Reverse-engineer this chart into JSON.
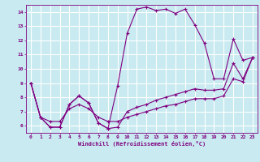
{
  "xlabel": "Windchill (Refroidissement éolien,°C)",
  "bg_color": "#c8eaf0",
  "grid_color": "#ffffff",
  "line_color": "#800080",
  "xlim": [
    -0.5,
    23.5
  ],
  "ylim": [
    5.5,
    14.5
  ],
  "yticks": [
    6,
    7,
    8,
    9,
    10,
    11,
    12,
    13,
    14
  ],
  "xticks": [
    0,
    1,
    2,
    3,
    4,
    5,
    6,
    7,
    8,
    9,
    10,
    11,
    12,
    13,
    14,
    15,
    16,
    17,
    18,
    19,
    20,
    21,
    22,
    23
  ],
  "line1_x": [
    0,
    1,
    2,
    3,
    4,
    5,
    6,
    7,
    8,
    9,
    10,
    11,
    12,
    13,
    14,
    15,
    16,
    17,
    18,
    19,
    20,
    21,
    22,
    23
  ],
  "line1_y": [
    9.0,
    6.6,
    5.9,
    5.9,
    7.5,
    8.1,
    7.6,
    6.2,
    5.8,
    5.9,
    7.0,
    7.3,
    7.5,
    7.8,
    8.0,
    8.2,
    8.4,
    8.6,
    8.5,
    8.5,
    8.6,
    10.4,
    9.3,
    10.8
  ],
  "line2_x": [
    0,
    1,
    2,
    3,
    4,
    5,
    6,
    7,
    8,
    9,
    10,
    11,
    12,
    13,
    14,
    15,
    16,
    17,
    18,
    19,
    20,
    21,
    22,
    23
  ],
  "line2_y": [
    9.0,
    6.6,
    5.9,
    5.9,
    7.5,
    8.1,
    7.6,
    6.2,
    5.8,
    8.8,
    12.5,
    14.2,
    14.35,
    14.1,
    14.2,
    13.9,
    14.2,
    13.1,
    11.8,
    9.3,
    9.3,
    12.1,
    10.6,
    10.8
  ],
  "line3_x": [
    0,
    1,
    2,
    3,
    4,
    5,
    6,
    7,
    8,
    9,
    10,
    11,
    12,
    13,
    14,
    15,
    16,
    17,
    18,
    19,
    20,
    21,
    22,
    23
  ],
  "line3_y": [
    9.0,
    6.6,
    6.3,
    6.3,
    7.2,
    7.5,
    7.2,
    6.6,
    6.3,
    6.3,
    6.6,
    6.8,
    7.0,
    7.2,
    7.4,
    7.5,
    7.7,
    7.9,
    7.9,
    7.9,
    8.1,
    9.3,
    9.1,
    10.8
  ],
  "marker": "+"
}
